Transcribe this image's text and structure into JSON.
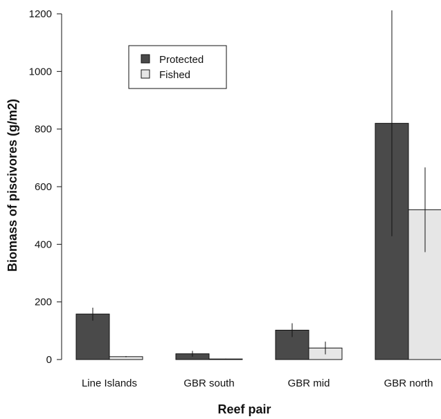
{
  "chart_data": {
    "type": "bar",
    "title": "",
    "xlabel": "Reef pair",
    "ylabel": "Biomass of piscivores (g/m2)",
    "ylim": [
      0,
      1200
    ],
    "yticks": [
      0,
      200,
      400,
      600,
      800,
      1000,
      1200
    ],
    "categories": [
      "Line Islands",
      "GBR south",
      "GBR mid",
      "GBR north"
    ],
    "series": [
      {
        "name": "Protected",
        "color": "#4a4a4a",
        "values": [
          158,
          20,
          102,
          820
        ],
        "error_low": [
          135,
          10,
          78,
          428
        ],
        "error_high": [
          180,
          30,
          126,
          1212
        ]
      },
      {
        "name": "Fished",
        "color": "#e6e6e6",
        "values": [
          10,
          2,
          40,
          520
        ],
        "error_low": [
          8,
          1,
          18,
          373
        ],
        "error_high": [
          12,
          3,
          62,
          667
        ]
      }
    ],
    "legend_position": "top-left",
    "grid": false
  }
}
